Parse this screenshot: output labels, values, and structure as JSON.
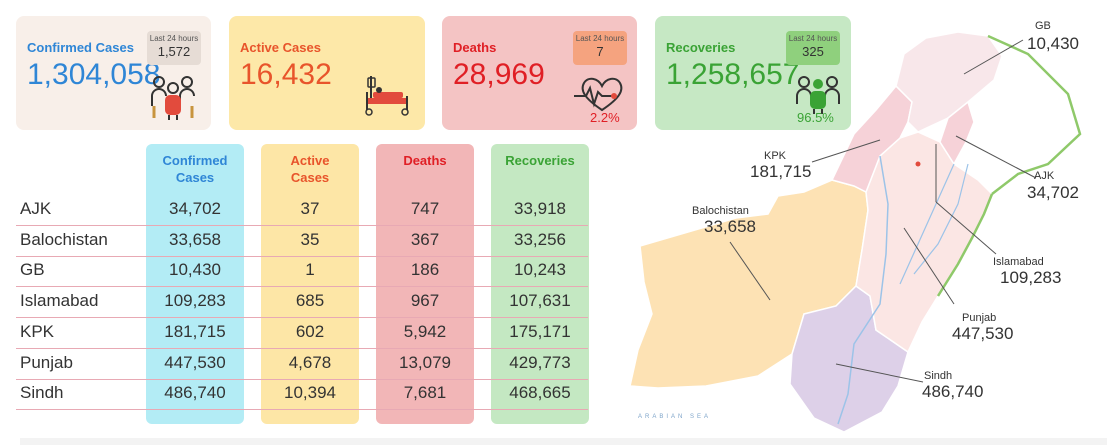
{
  "cards": {
    "confirmed": {
      "title": "Confirmed Cases",
      "value": "1,304,058",
      "last24_caption": "Last 24 hours",
      "last24_value": "1,572",
      "icon": "people-group-icon"
    },
    "active": {
      "title": "Active Cases",
      "value": "16,432",
      "icon": "hospital-bed-icon"
    },
    "deaths": {
      "title": "Deaths",
      "value": "28,969",
      "last24_caption": "Last 24 hours",
      "last24_value": "7",
      "pct": "2.2%",
      "icon": "heartbeat-icon"
    },
    "recoveries": {
      "title": "Recoveries",
      "value": "1,258,657",
      "last24_caption": "Last 24 hours",
      "last24_value": "325",
      "pct": "96.5%",
      "icon": "recovered-people-icon"
    }
  },
  "table": {
    "headers": {
      "confirmed": [
        "Confirmed",
        "Cases"
      ],
      "active": [
        "Active",
        "Cases"
      ],
      "deaths": "Deaths",
      "recoveries": "Recoveries"
    },
    "rows": [
      {
        "region": "AJK",
        "confirmed": "34,702",
        "active": "37",
        "deaths": "747",
        "recoveries": "33,918"
      },
      {
        "region": "Balochistan",
        "confirmed": "33,658",
        "active": "35",
        "deaths": "367",
        "recoveries": "33,256"
      },
      {
        "region": "GB",
        "confirmed": "10,430",
        "active": "1",
        "deaths": "186",
        "recoveries": "10,243"
      },
      {
        "region": "Islamabad",
        "confirmed": "109,283",
        "active": "685",
        "deaths": "967",
        "recoveries": "107,631"
      },
      {
        "region": "KPK",
        "confirmed": "181,715",
        "active": "602",
        "deaths": "5,942",
        "recoveries": "175,171"
      },
      {
        "region": "Punjab",
        "confirmed": "447,530",
        "active": "4,678",
        "deaths": "13,079",
        "recoveries": "429,773"
      },
      {
        "region": "Sindh",
        "confirmed": "486,740",
        "active": "10,394",
        "deaths": "7,681",
        "recoveries": "468,665"
      }
    ]
  },
  "map": {
    "labels": {
      "gb": {
        "name": "GB",
        "value": "10,430"
      },
      "kpk": {
        "name": "KPK",
        "value": "181,715"
      },
      "ajk": {
        "name": "AJK",
        "value": "34,702"
      },
      "balochistan": {
        "name": "Balochistan",
        "value": "33,658"
      },
      "islamabad": {
        "name": "Islamabad",
        "value": "109,283"
      },
      "punjab": {
        "name": "Punjab",
        "value": "447,530"
      },
      "sindh": {
        "name": "Sindh",
        "value": "486,740"
      }
    },
    "sea_label": "ARABIAN SEA"
  },
  "colors": {
    "confirmed_card": "#f8efe9",
    "active_card": "#fde8a8",
    "deaths_card": "#f4c4c4",
    "recoveries_card": "#c6e8c4",
    "confirmed_col": "#b3ecf5",
    "active_col": "#fde6a6",
    "deaths_col": "#f2b6b7",
    "recoveries_col": "#c4e8c2",
    "confirmed_text": "#2f86d6",
    "active_text": "#e8542b",
    "deaths_text": "#e01f25",
    "recoveries_text": "#3aa335",
    "balochistan": "#fde2b4",
    "sindh": "#ddd0e8",
    "punjab": "#fbe6e4",
    "kpk": "#f6d2d8",
    "gb": "#f8e7ea"
  }
}
